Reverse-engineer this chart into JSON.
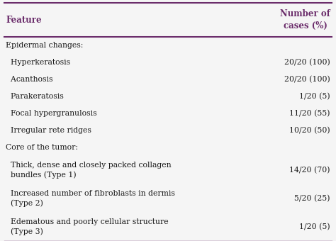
{
  "header_col1": "Feature",
  "header_col2": "Number of\ncases (%)",
  "header_text_color": "#6B2D6B",
  "header_bg_color": "#FFFFFF",
  "rows": [
    {
      "feature": "Epidermal changes:",
      "value": "",
      "indent": 0,
      "category": true
    },
    {
      "feature": "  Hyperkeratosis",
      "value": "20/20 (100)",
      "indent": 1,
      "category": false
    },
    {
      "feature": "  Acanthosis",
      "value": "20/20 (100)",
      "indent": 1,
      "category": false
    },
    {
      "feature": "  Parakeratosis",
      "value": "1/20 (5)",
      "indent": 1,
      "category": false
    },
    {
      "feature": "  Focal hypergranulosis",
      "value": "11/20 (55)",
      "indent": 1,
      "category": false
    },
    {
      "feature": "  Irregular rete ridges",
      "value": "10/20 (50)",
      "indent": 1,
      "category": false
    },
    {
      "feature": "Core of the tumor:",
      "value": "",
      "indent": 0,
      "category": true
    },
    {
      "feature": "  Thick, dense and closely packed collagen\n  bundles (Type 1)",
      "value": "14/20 (70)",
      "indent": 1,
      "category": false
    },
    {
      "feature": "  Increased number of fibroblasts in dermis\n  (Type 2)",
      "value": "5/20 (25)",
      "indent": 1,
      "category": false
    },
    {
      "feature": "  Edematous and poorly cellular structure\n  (Type 3)",
      "value": "1/20 (5)",
      "indent": 1,
      "category": false
    }
  ],
  "text_color": "#1a1a1a",
  "line_color": "#6B2D6B",
  "bg_color": "#F5F5F5",
  "font_size": 7.8,
  "header_font_size": 8.5
}
